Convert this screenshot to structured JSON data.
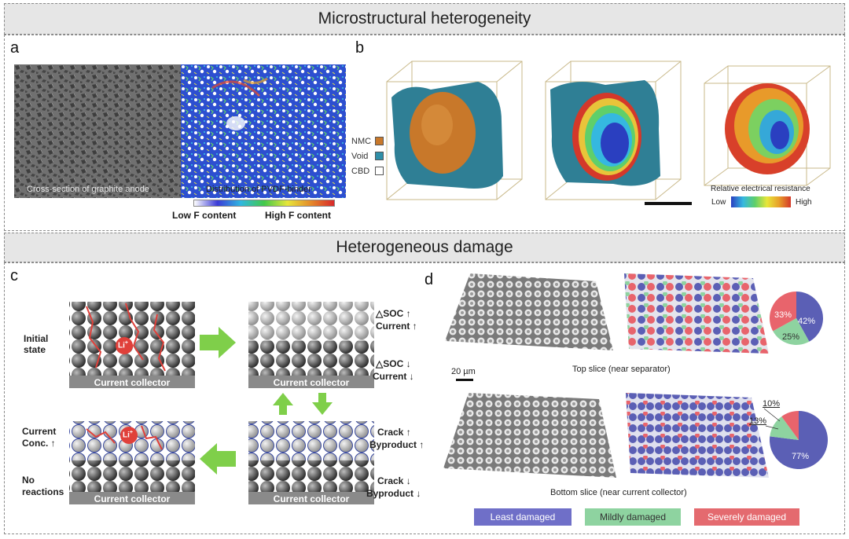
{
  "top_section": {
    "title": "Microstructural heterogeneity"
  },
  "bottom_section": {
    "title": "Heterogeneous damage"
  },
  "panel_a": {
    "letter": "a",
    "left_caption": "Cross-section of graphite anode",
    "right_caption": "Distribution of PVDF-binder",
    "scale_low": "Low F content",
    "scale_high": "High F content"
  },
  "panel_b": {
    "letter": "b",
    "legend": [
      {
        "label": "NMC",
        "color": "#c8782a"
      },
      {
        "label": "Void",
        "color": "#2f8fa8"
      },
      {
        "label": "CBD",
        "color": "#ffffff"
      }
    ],
    "resistance_title": "Relative electrical resistance",
    "resistance_low": "Low",
    "resistance_high": "High"
  },
  "panel_c": {
    "letter": "c",
    "initial_state": "Initial state",
    "current_collector": "Current collector",
    "li_label": "Li",
    "li_sup": "+",
    "dsoc_up": "△SOC ↑",
    "current_up": "Current ↑",
    "dsoc_down": "△SOC ↓",
    "current_down": "Current ↓",
    "crack_up": "Crack ↑",
    "byproduct_up": "Byproduct ↑",
    "crack_down": "Crack ↓",
    "byproduct_down": "Byproduct ↓",
    "current_conc": "Current Conc. ↑",
    "no_reactions": "No reactions"
  },
  "panel_d": {
    "letter": "d",
    "scale_bar": "20 µm",
    "top_caption": "Top slice (near separator)",
    "bottom_caption": "Bottom slice (near current collector)",
    "top_pie": [
      {
        "label": "42%",
        "value": 42,
        "color": "#5b5fb5"
      },
      {
        "label": "25%",
        "value": 25,
        "color": "#8ed3a0"
      },
      {
        "label": "33%",
        "value": 33,
        "color": "#e8646c"
      }
    ],
    "bottom_pie": [
      {
        "label": "77%",
        "value": 77,
        "color": "#5b5fb5"
      },
      {
        "label": "13%",
        "value": 13,
        "color": "#8ed3a0"
      },
      {
        "label": "10%",
        "value": 10,
        "color": "#e8646c"
      }
    ],
    "legend": [
      {
        "label": "Least damaged",
        "color": "#6f6fc8"
      },
      {
        "label": "Mildly damaged",
        "color": "#8ed3a0"
      },
      {
        "label": "Severely damaged",
        "color": "#e46a6f"
      }
    ]
  }
}
